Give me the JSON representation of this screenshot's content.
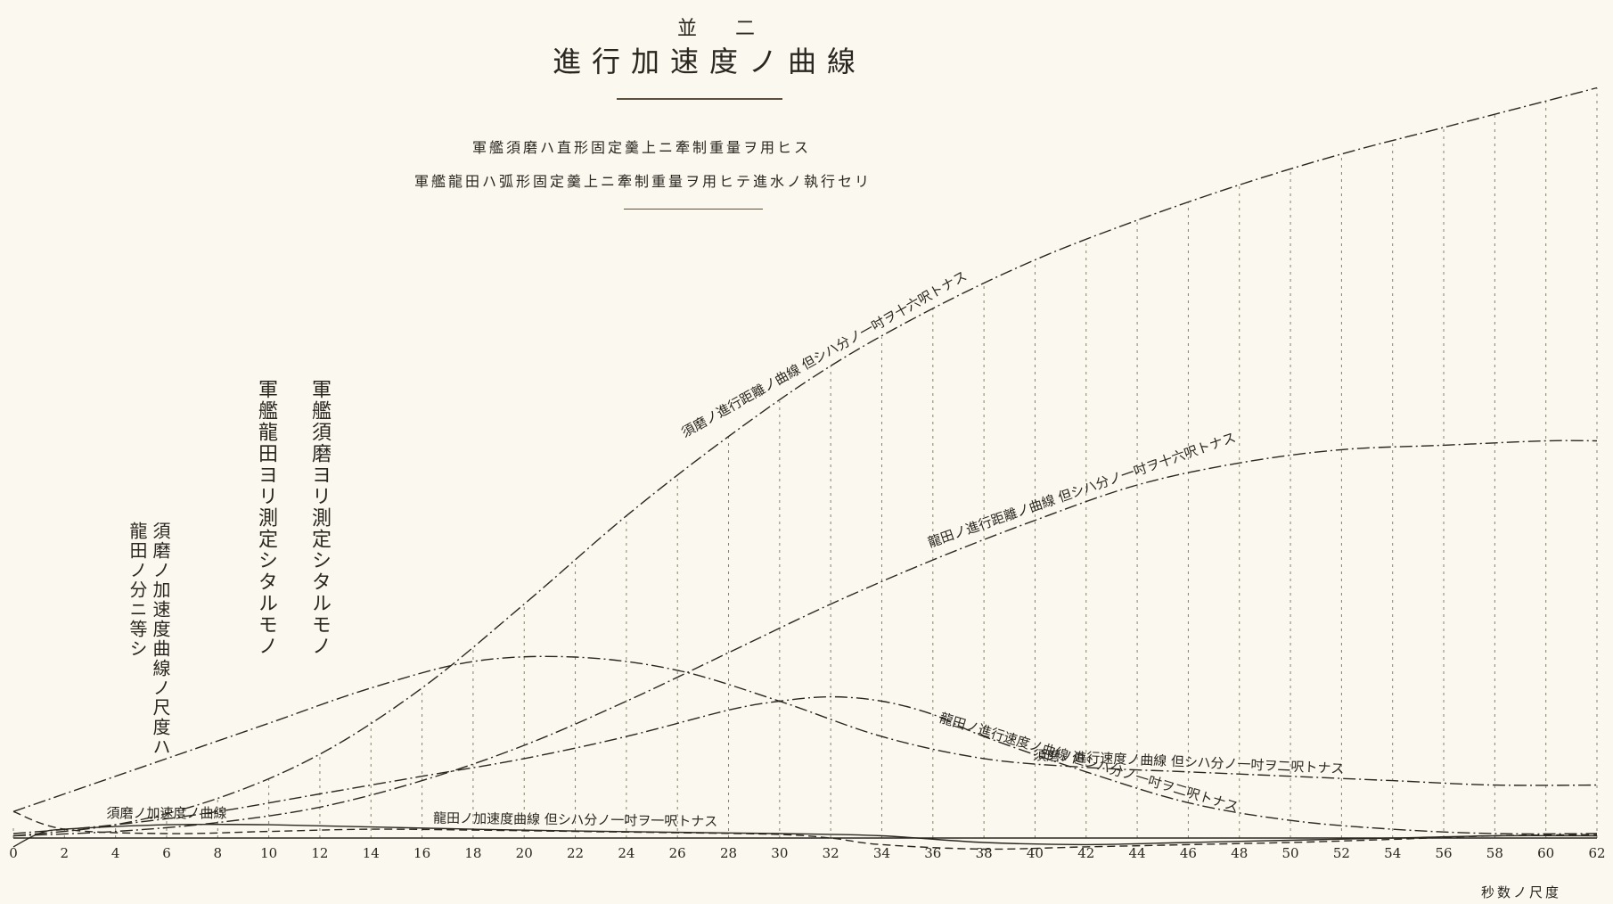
{
  "header": {
    "plate": "並 二",
    "title": "進行加速度ノ曲線",
    "note1": "軍艦須磨ハ直形固定羹上ニ牽制重量ヲ用ヒス",
    "note2": "軍艦龍田ハ弧形固定羹上ニ牽制重量ヲ用ヒテ進水ノ執行セリ"
  },
  "side_notes": {
    "suma_measured": "軍艦須磨ヨリ測定シタルモノ",
    "tatsuta_measured": "軍艦龍田ヨリ測定シタルモノ",
    "scale_note_1": "須磨ノ加速度曲線ノ尺度ハ",
    "scale_note_2": "龍田ノ分ニ等シ"
  },
  "axis": {
    "unit_label": "秒数ノ尺度"
  },
  "colors": {
    "ink": "#2a2620",
    "paper": "#fbf8ef",
    "grid": "#8a7f6a"
  },
  "chart_data": {
    "type": "line",
    "x_ticks": [
      0,
      2,
      4,
      6,
      8,
      10,
      12,
      14,
      16,
      18,
      20,
      22,
      24,
      26,
      28,
      30,
      32,
      34,
      36,
      38,
      40,
      42,
      44,
      46,
      48,
      50,
      52,
      54,
      56,
      58,
      60,
      62
    ],
    "xlim": [
      0,
      62
    ],
    "grid": "vertical dotted lines at every 2 seconds",
    "curve_labels": {
      "suma_distance": "須磨ノ進行距離ノ曲線 但シハ分ノ一吋ヲ十六呎トナス",
      "tatsuta_distance": "龍田ノ進行距離ノ曲線 但シハ分ノ一吋ヲ十六呎トナス",
      "suma_velocity": "須磨ノ進行速度ノ曲線 但シハ分ノ一吋ヲ二呎トナス",
      "tatsuta_velocity": "龍田ノ進行速度ノ曲線 但シハ分ノ一吋ヲ二呎トナス",
      "suma_acceleration": "須磨ノ加速度ノ曲線",
      "tatsuta_acceleration": "龍田ノ加速度曲線 但シハ分ノ一吋ヲ一呎トナス"
    },
    "series": [
      {
        "id": "suma_distance",
        "style": "dash-dot",
        "x": [
          0,
          4,
          8,
          12,
          16,
          20,
          24,
          28,
          32,
          36,
          40,
          44,
          48,
          52,
          56,
          60,
          62
        ],
        "y": [
          0.5,
          3,
          9,
          19,
          34,
          53,
          73,
          91,
          107,
          120,
          131,
          140,
          148,
          155,
          161,
          167,
          170
        ]
      },
      {
        "id": "tatsuta_distance",
        "style": "dash-dot",
        "x": [
          0,
          4,
          8,
          12,
          16,
          20,
          24,
          28,
          32,
          36,
          40,
          44,
          48,
          52,
          56,
          60,
          62
        ],
        "y": [
          0.5,
          1.5,
          3.5,
          7,
          13,
          21,
          31,
          42,
          53,
          63,
          72,
          80,
          85,
          88,
          89,
          90,
          90
        ]
      },
      {
        "id": "suma_velocity",
        "style": "dash-dot",
        "x": [
          0,
          2,
          6,
          10,
          14,
          18,
          22,
          26,
          30,
          34,
          38,
          42,
          46,
          50,
          54,
          58,
          62
        ],
        "y": [
          6,
          10,
          18,
          26,
          34,
          40,
          41,
          38,
          31,
          23,
          18,
          16,
          15,
          14,
          13,
          12,
          12
        ]
      },
      {
        "id": "tatsuta_velocity",
        "style": "dash-dot",
        "x": [
          0,
          4,
          8,
          12,
          16,
          20,
          24,
          28,
          30,
          32,
          34,
          36,
          38,
          42,
          46,
          50,
          54,
          58,
          62
        ],
        "y": [
          1,
          3,
          6,
          10,
          14,
          18,
          23,
          29,
          31,
          32,
          31,
          28,
          23,
          15,
          8,
          4,
          2,
          1,
          1
        ]
      },
      {
        "id": "suma_acceleration",
        "style": "solid",
        "x": [
          0,
          1,
          2,
          6,
          10,
          14,
          18,
          22,
          26,
          30,
          34,
          38,
          42,
          46,
          50,
          54,
          58,
          62
        ],
        "y": [
          -2,
          1,
          2,
          3,
          3,
          2.5,
          2,
          1.6,
          1.3,
          1,
          0.5,
          -1,
          -1.5,
          -1,
          -0.5,
          0,
          0.5,
          0.5
        ]
      },
      {
        "id": "tatsuta_acceleration",
        "style": "dash",
        "x": [
          0,
          2,
          6,
          10,
          14,
          18,
          22,
          26,
          30,
          32,
          34,
          38,
          42,
          46,
          50,
          54,
          58,
          62
        ],
        "y": [
          6,
          2,
          1,
          1.5,
          2,
          1.8,
          1.5,
          1.2,
          0.8,
          0,
          -1.5,
          -2.5,
          -2,
          -1.5,
          -1,
          -0.3,
          0.5,
          0.8
        ]
      }
    ]
  }
}
